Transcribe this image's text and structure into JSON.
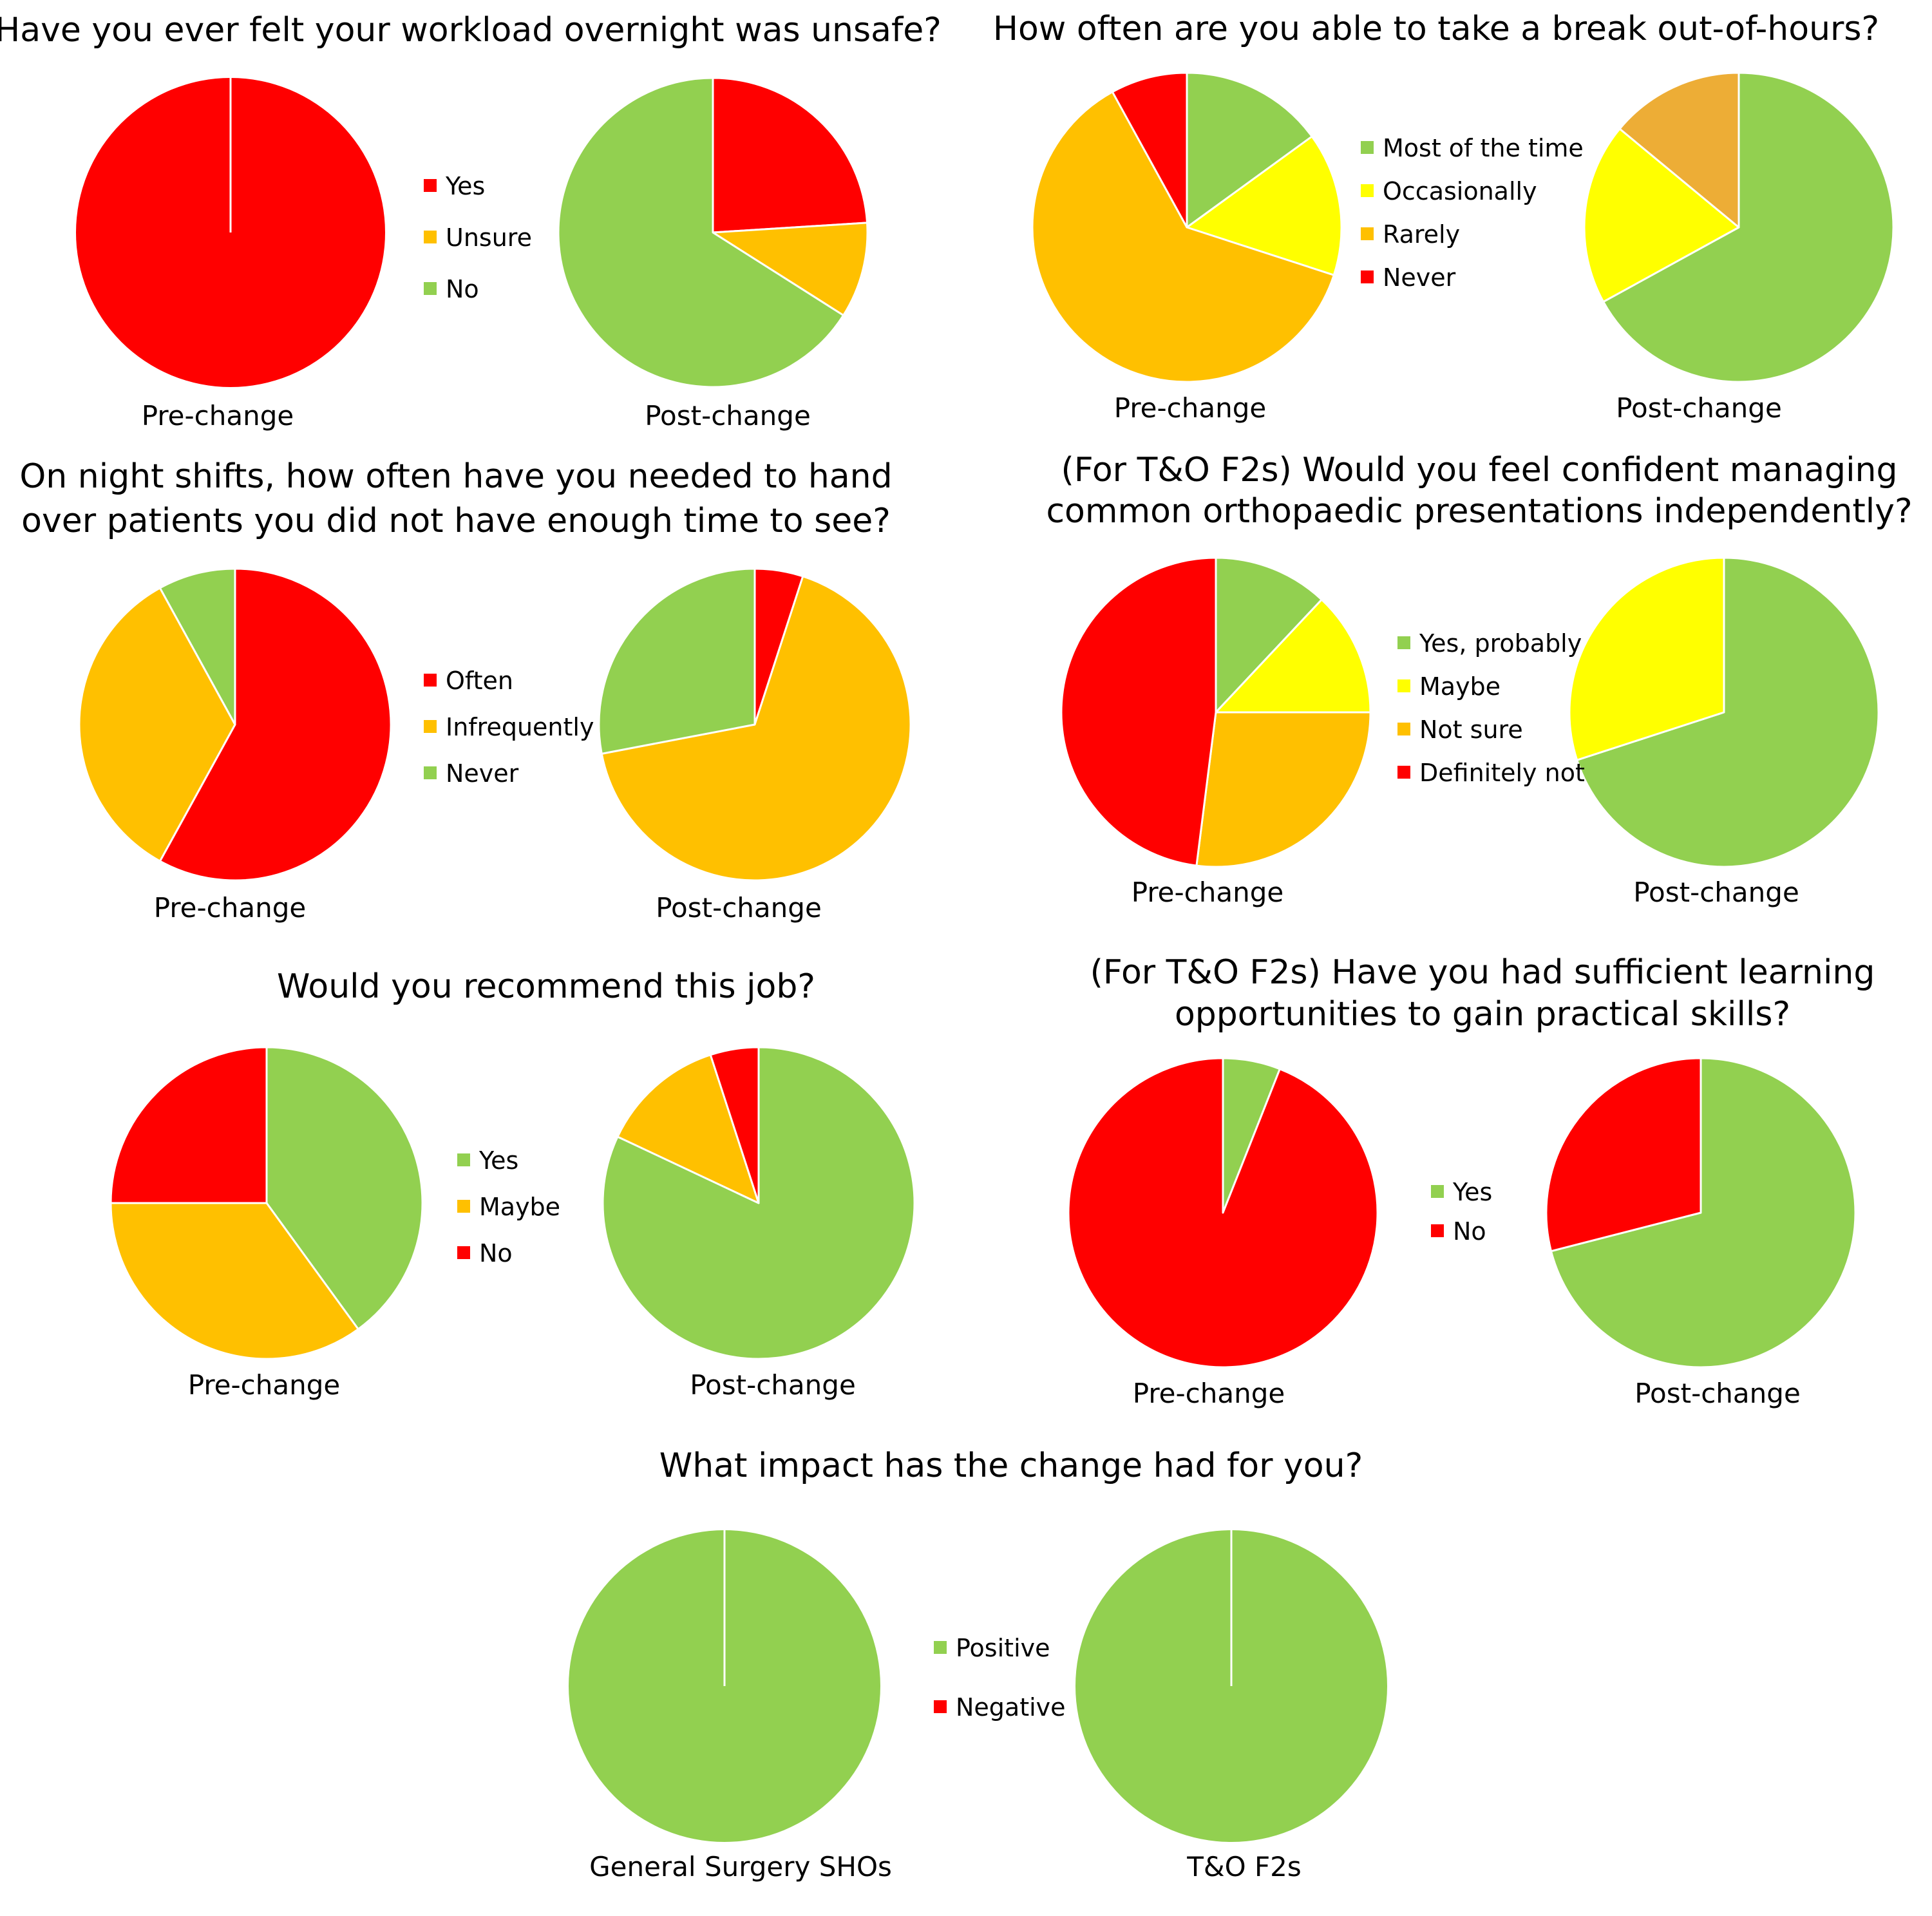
{
  "colors": {
    "green": "#92D050",
    "yellow": "#FFFF00",
    "amber": "#FFC000",
    "red": "#FF0000",
    "orange": "#EDAD36"
  },
  "chart_data": [
    {
      "type": "pie",
      "title": "Have you ever felt your workload overnight was unsafe?",
      "legend": [
        {
          "label": "Yes",
          "color": "red"
        },
        {
          "label": "Unsure",
          "color": "amber"
        },
        {
          "label": "No",
          "color": "green"
        }
      ],
      "pies": [
        {
          "label": "Pre-change",
          "slices": [
            {
              "category": "Yes",
              "value": 100,
              "color": "red"
            }
          ]
        },
        {
          "label": "Post-change",
          "slices": [
            {
              "category": "Yes",
              "value": 24,
              "color": "red"
            },
            {
              "category": "Unsure",
              "value": 10,
              "color": "amber"
            },
            {
              "category": "No",
              "value": 66,
              "color": "green"
            }
          ]
        }
      ]
    },
    {
      "type": "pie",
      "title": "How often are you able to take a break out-of-hours?",
      "legend": [
        {
          "label": "Most of the time",
          "color": "green"
        },
        {
          "label": "Occasionally",
          "color": "yellow"
        },
        {
          "label": "Rarely",
          "color": "amber"
        },
        {
          "label": "Never",
          "color": "red"
        }
      ],
      "pies": [
        {
          "label": "Pre-change",
          "slices": [
            {
              "category": "Most of the time",
              "value": 15,
              "color": "green"
            },
            {
              "category": "Occasionally",
              "value": 15,
              "color": "yellow"
            },
            {
              "category": "Rarely",
              "value": 62,
              "color": "amber"
            },
            {
              "category": "Never",
              "value": 8,
              "color": "red"
            }
          ]
        },
        {
          "label": "Post-change",
          "slices": [
            {
              "category": "Most of the time",
              "value": 67,
              "color": "green"
            },
            {
              "category": "Occasionally",
              "value": 19,
              "color": "yellow"
            },
            {
              "category": "Rarely",
              "value": 14,
              "color": "orange"
            }
          ]
        }
      ]
    },
    {
      "type": "pie",
      "title": "On night shifts, how often have you needed to hand over patients you did not have enough time to see?",
      "legend": [
        {
          "label": "Often",
          "color": "red"
        },
        {
          "label": "Infrequently",
          "color": "amber"
        },
        {
          "label": "Never",
          "color": "green"
        }
      ],
      "pies": [
        {
          "label": "Pre-change",
          "slices": [
            {
              "category": "Often",
              "value": 58,
              "color": "red"
            },
            {
              "category": "Infrequently",
              "value": 34,
              "color": "amber"
            },
            {
              "category": "Never",
              "value": 8,
              "color": "green"
            }
          ]
        },
        {
          "label": "Post-change",
          "slices": [
            {
              "category": "Often",
              "value": 5,
              "color": "red"
            },
            {
              "category": "Infrequently",
              "value": 67,
              "color": "amber"
            },
            {
              "category": "Never",
              "value": 28,
              "color": "green"
            }
          ]
        }
      ]
    },
    {
      "type": "pie",
      "title": "(For T&O F2s) Would you feel confident managing common orthopaedic presentations independently?",
      "legend": [
        {
          "label": "Yes, probably",
          "color": "green"
        },
        {
          "label": "Maybe",
          "color": "yellow"
        },
        {
          "label": "Not sure",
          "color": "amber"
        },
        {
          "label": "Definitely not",
          "color": "red"
        }
      ],
      "pies": [
        {
          "label": "Pre-change",
          "slices": [
            {
              "category": "Yes, probably",
              "value": 12,
              "color": "green"
            },
            {
              "category": "Maybe",
              "value": 13,
              "color": "yellow"
            },
            {
              "category": "Not sure",
              "value": 27,
              "color": "amber"
            },
            {
              "category": "Definitely not",
              "value": 48,
              "color": "red"
            }
          ]
        },
        {
          "label": "Post-change",
          "slices": [
            {
              "category": "Yes, probably",
              "value": 70,
              "color": "green"
            },
            {
              "category": "Maybe",
              "value": 30,
              "color": "yellow"
            }
          ]
        }
      ]
    },
    {
      "type": "pie",
      "title": "Would you recommend this job?",
      "legend": [
        {
          "label": "Yes",
          "color": "green"
        },
        {
          "label": "Maybe",
          "color": "amber"
        },
        {
          "label": "No",
          "color": "red"
        }
      ],
      "pies": [
        {
          "label": "Pre-change",
          "slices": [
            {
              "category": "Yes",
              "value": 40,
              "color": "green"
            },
            {
              "category": "Maybe",
              "value": 35,
              "color": "amber"
            },
            {
              "category": "No",
              "value": 25,
              "color": "red"
            }
          ]
        },
        {
          "label": "Post-change",
          "slices": [
            {
              "category": "Yes",
              "value": 82,
              "color": "green"
            },
            {
              "category": "Maybe",
              "value": 13,
              "color": "amber"
            },
            {
              "category": "No",
              "value": 5,
              "color": "red"
            }
          ]
        }
      ]
    },
    {
      "type": "pie",
      "title": "(For T&O F2s) Have you had sufficient learning opportunities to gain practical skills?",
      "legend": [
        {
          "label": "Yes",
          "color": "green"
        },
        {
          "label": "No",
          "color": "red"
        }
      ],
      "pies": [
        {
          "label": "Pre-change",
          "slices": [
            {
              "category": "Yes",
              "value": 6,
              "color": "green"
            },
            {
              "category": "No",
              "value": 94,
              "color": "red"
            }
          ]
        },
        {
          "label": "Post-change",
          "slices": [
            {
              "category": "Yes",
              "value": 71,
              "color": "green"
            },
            {
              "category": "No",
              "value": 29,
              "color": "red"
            }
          ]
        }
      ]
    },
    {
      "type": "pie",
      "title": "What impact has the change had for you?",
      "legend": [
        {
          "label": "Positive",
          "color": "green"
        },
        {
          "label": "Negative",
          "color": "red"
        }
      ],
      "pies": [
        {
          "label": "General Surgery SHOs",
          "slices": [
            {
              "category": "Positive",
              "value": 100,
              "color": "green"
            }
          ]
        },
        {
          "label": "T&O F2s",
          "slices": [
            {
              "category": "Positive",
              "value": 100,
              "color": "green"
            }
          ]
        }
      ]
    }
  ]
}
